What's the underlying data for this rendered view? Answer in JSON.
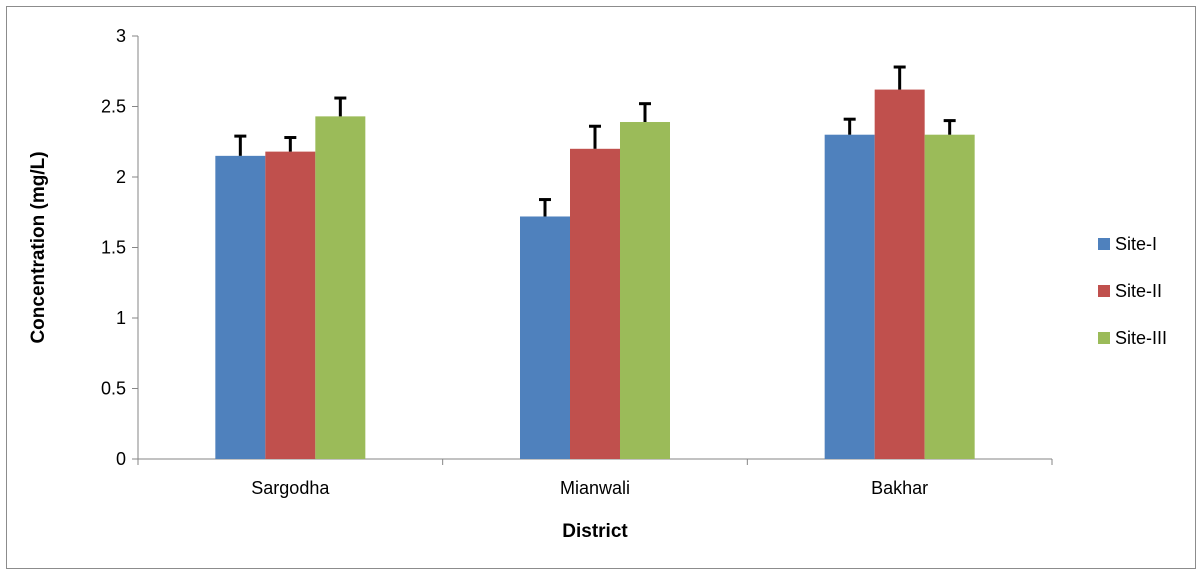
{
  "chart_data": {
    "type": "bar",
    "title": "",
    "xlabel": "District",
    "ylabel": "Concentration (mg/L)",
    "categories": [
      "Sargodha",
      "Mianwali",
      "Bakhar"
    ],
    "series": [
      {
        "name": "Site-I",
        "color": "#4f81bd",
        "values": [
          2.15,
          1.72,
          2.3
        ],
        "errors": [
          0.14,
          0.12,
          0.11
        ]
      },
      {
        "name": "Site-II",
        "color": "#c0504d",
        "values": [
          2.18,
          2.2,
          2.62
        ],
        "errors": [
          0.1,
          0.16,
          0.16
        ]
      },
      {
        "name": "Site-III",
        "color": "#9bbb59",
        "values": [
          2.43,
          2.39,
          2.3
        ],
        "errors": [
          0.13,
          0.13,
          0.1
        ]
      }
    ],
    "ylim": [
      0,
      3
    ],
    "yticks": [
      "0",
      "0.5",
      "1",
      "1.5",
      "2",
      "2.5",
      "3"
    ],
    "grid": false,
    "legend_position": "right"
  }
}
